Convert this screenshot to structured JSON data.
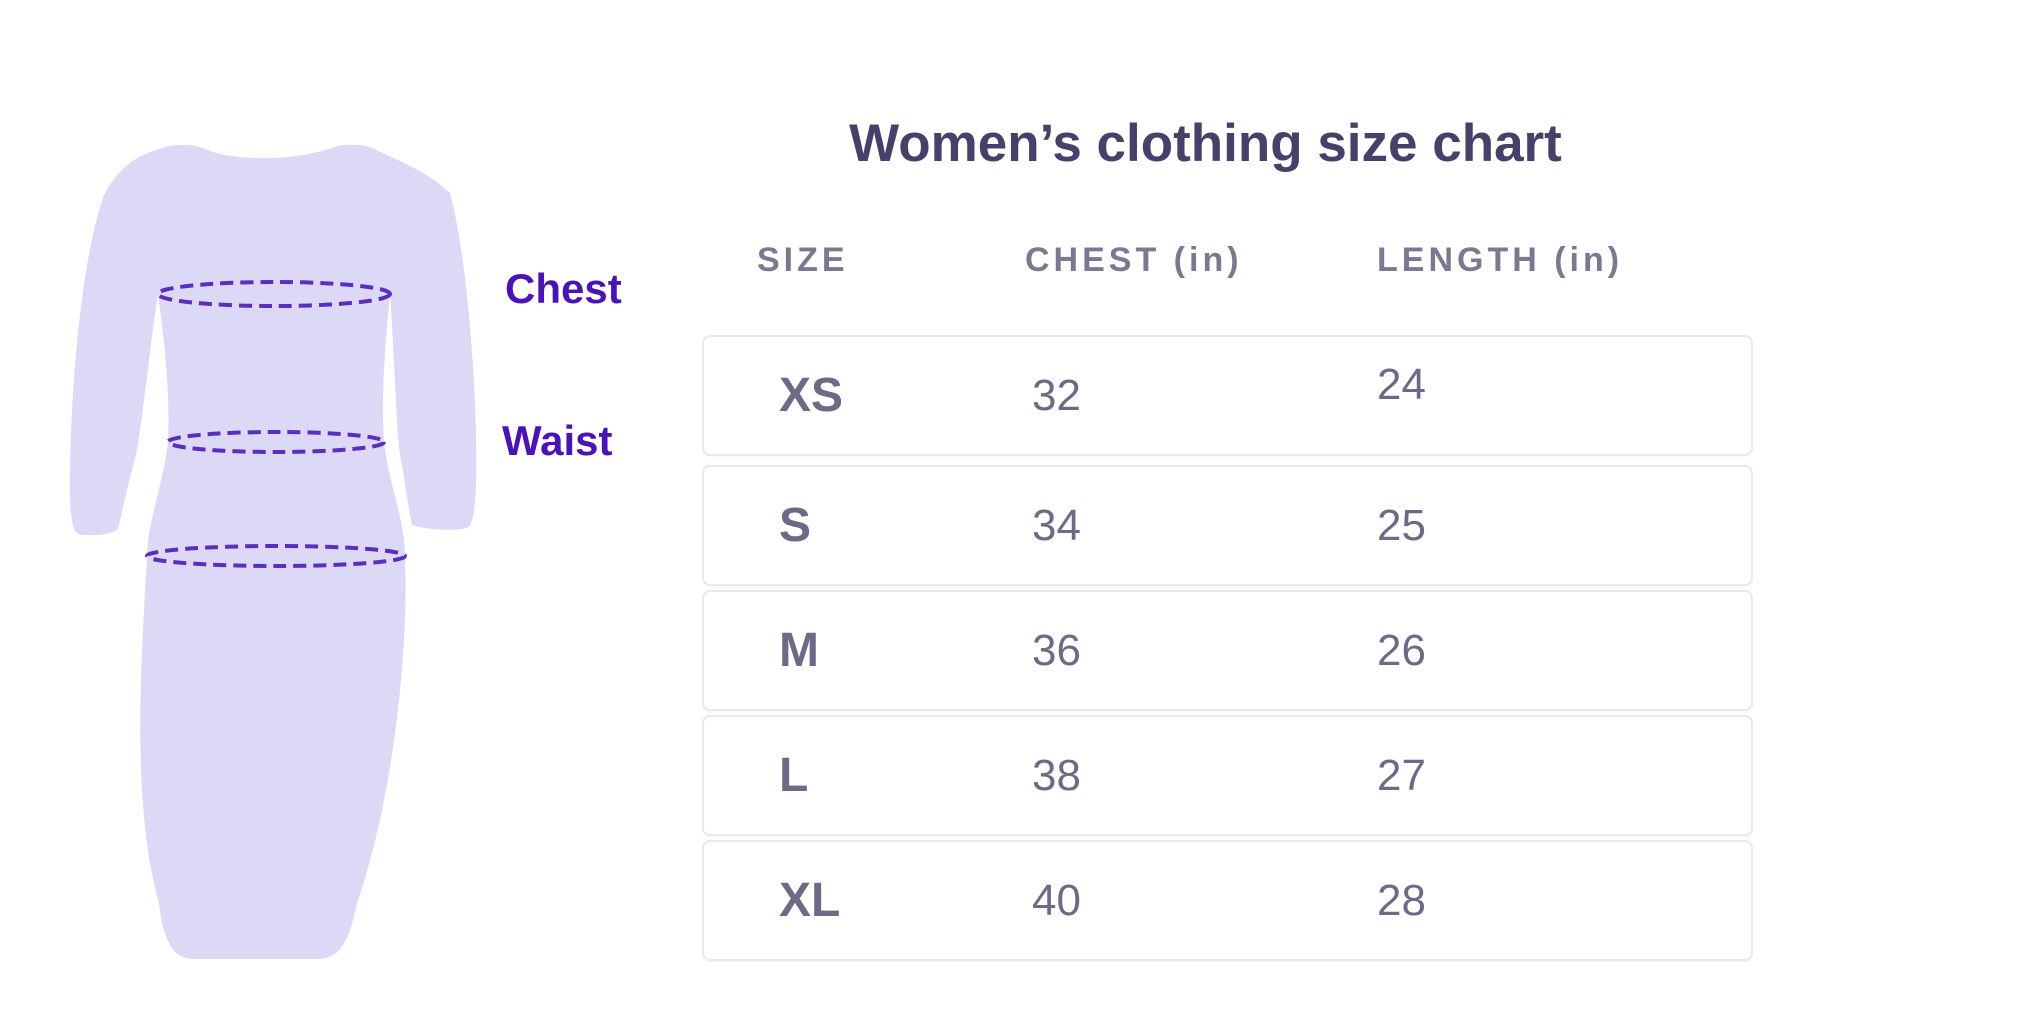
{
  "title": "Women’s clothing size chart",
  "illustration": {
    "chest_label": "Chest",
    "waist_label": "Waist"
  },
  "table": {
    "columns": [
      "SIZE",
      "CHEST (in)",
      "LENGTH (in)"
    ],
    "rows": [
      {
        "size": "XS",
        "chest": "32",
        "length": "24"
      },
      {
        "size": "S",
        "chest": "34",
        "length": "25"
      },
      {
        "size": "M",
        "chest": "36",
        "length": "26"
      },
      {
        "size": "L",
        "chest": "38",
        "length": "27"
      },
      {
        "size": "XL",
        "chest": "40",
        "length": "28"
      }
    ]
  },
  "colors": {
    "title_text": "#454169",
    "header_text": "#7b7890",
    "cell_text": "#6d6a86",
    "row_border": "#e9e8ed",
    "dress_fill": "#dcd9f6",
    "measure_line": "#5d2dc0",
    "measure_label": "#4b13b4",
    "background": "#ffffff"
  },
  "chart_data": {
    "type": "table",
    "title": "Women’s clothing size chart",
    "columns": [
      "SIZE",
      "CHEST (in)",
      "LENGTH (in)"
    ],
    "rows": [
      [
        "XS",
        "32",
        "24"
      ],
      [
        "S",
        "34",
        "25"
      ],
      [
        "M",
        "36",
        "26"
      ],
      [
        "L",
        "38",
        "27"
      ],
      [
        "XL",
        "40",
        "28"
      ]
    ]
  }
}
